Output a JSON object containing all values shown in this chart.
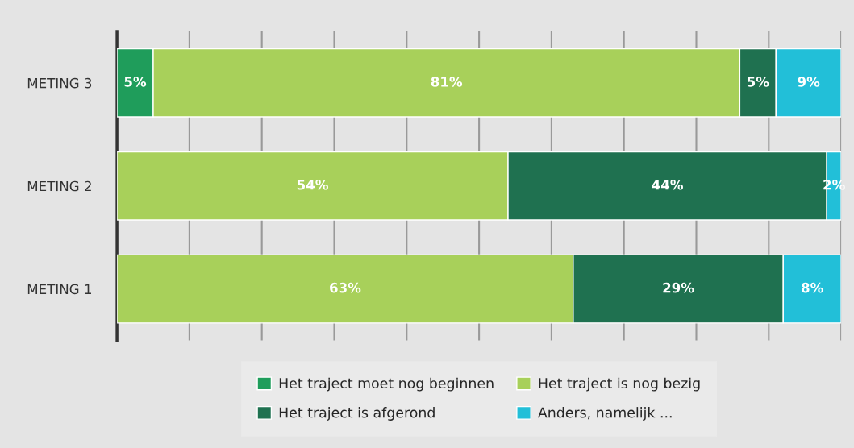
{
  "chart_data": {
    "type": "bar",
    "orientation": "horizontal",
    "stacked": true,
    "categories": [
      "METING 3",
      "METING 2",
      "METING 1"
    ],
    "series": [
      {
        "name": "Het traject moet nog beginnen",
        "color": "#1f9d5b",
        "values": [
          5,
          null,
          null
        ],
        "value_labels": [
          "5%",
          null,
          null
        ]
      },
      {
        "name": "Het traject is nog bezig",
        "color": "#a8d05a",
        "values": [
          81,
          54,
          63
        ],
        "value_labels": [
          "81%",
          "54%",
          "63%"
        ]
      },
      {
        "name": "Het traject is afgerond",
        "color": "#1f7150",
        "values": [
          5,
          44,
          29
        ],
        "value_labels": [
          "5%",
          "44%",
          "29%"
        ]
      },
      {
        "name": "Anders, namelijk ...",
        "color": "#22bfd8",
        "values": [
          9,
          2,
          8
        ],
        "value_labels": [
          "9%",
          "2%",
          "8%"
        ]
      }
    ],
    "tick_labels": "y",
    "grid": "x",
    "legend": "bottom"
  }
}
